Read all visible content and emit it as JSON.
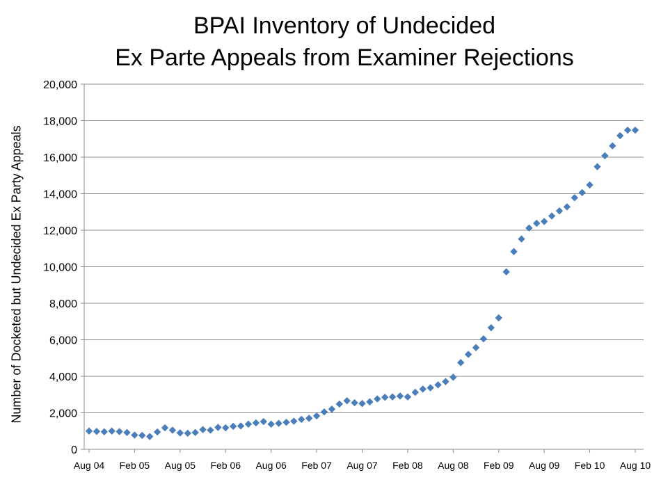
{
  "chart_data": {
    "type": "scatter",
    "title": [
      "BPAI Inventory of Undecided",
      "Ex Parte Appeals from Examiner Rejections"
    ],
    "xlabel": "",
    "ylabel": "Number of Docketed but Undecided Ex Party Appeals",
    "ylim": [
      0,
      20000
    ],
    "yticks": [
      0,
      2000,
      4000,
      6000,
      8000,
      10000,
      12000,
      14000,
      16000,
      18000,
      20000
    ],
    "ytick_labels": [
      "0",
      "2,000",
      "4,000",
      "6,000",
      "8,000",
      "10,000",
      "12,000",
      "14,000",
      "16,000",
      "18,000",
      "20,000"
    ],
    "xtick_labels": [
      "Aug 04",
      "Feb 05",
      "Aug 05",
      "Feb 06",
      "Aug 06",
      "Feb 07",
      "Aug 07",
      "Feb 08",
      "Aug 08",
      "Feb 09",
      "Aug 09",
      "Feb 10",
      "Aug 10"
    ],
    "grid": true,
    "legend": "none",
    "marker_color": "#4a7ebb",
    "x": [
      "2004-08",
      "2004-09",
      "2004-10",
      "2004-11",
      "2004-12",
      "2005-01",
      "2005-02",
      "2005-03",
      "2005-04",
      "2005-05",
      "2005-06",
      "2005-07",
      "2005-08",
      "2005-09",
      "2005-10",
      "2005-11",
      "2005-12",
      "2006-01",
      "2006-02",
      "2006-03",
      "2006-04",
      "2006-05",
      "2006-06",
      "2006-07",
      "2006-08",
      "2006-09",
      "2006-10",
      "2006-11",
      "2006-12",
      "2007-01",
      "2007-02",
      "2007-03",
      "2007-04",
      "2007-05",
      "2007-06",
      "2007-07",
      "2007-08",
      "2007-09",
      "2007-10",
      "2007-11",
      "2007-12",
      "2008-01",
      "2008-02",
      "2008-03",
      "2008-04",
      "2008-05",
      "2008-06",
      "2008-07",
      "2008-08",
      "2008-09",
      "2008-10",
      "2008-11",
      "2008-12",
      "2009-01",
      "2009-02",
      "2009-03",
      "2009-04",
      "2009-05",
      "2009-06",
      "2009-07",
      "2009-08",
      "2009-09",
      "2009-10",
      "2009-11",
      "2009-12",
      "2010-01",
      "2010-02",
      "2010-03",
      "2010-04",
      "2010-05",
      "2010-06",
      "2010-07",
      "2010-08"
    ],
    "values": [
      1000,
      980,
      960,
      1000,
      970,
      920,
      780,
      760,
      700,
      950,
      1180,
      1050,
      900,
      880,
      920,
      1080,
      1050,
      1200,
      1180,
      1260,
      1280,
      1380,
      1450,
      1520,
      1380,
      1420,
      1480,
      1540,
      1640,
      1700,
      1830,
      2050,
      2200,
      2480,
      2660,
      2550,
      2510,
      2600,
      2760,
      2850,
      2870,
      2920,
      2870,
      3120,
      3300,
      3370,
      3530,
      3710,
      3950,
      4750,
      5200,
      5570,
      6050,
      6660,
      7200,
      9720,
      10830,
      11520,
      12120,
      12380,
      12480,
      12780,
      13060,
      13280,
      13780,
      14060,
      14480,
      15480,
      16080,
      16620,
      17180,
      17480,
      17480
    ]
  }
}
